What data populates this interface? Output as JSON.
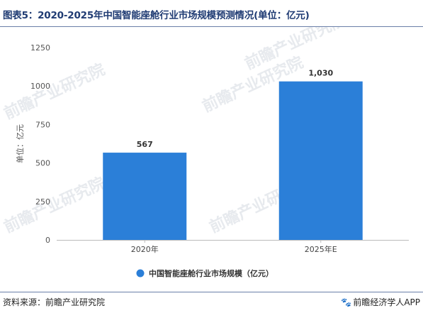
{
  "header": {
    "title": "图表5：2020-2025年中国智能座舱行业市场规模预测情况(单位：亿元)"
  },
  "footer": {
    "source": "资料来源：前瞻产业研究院",
    "brand": "前瞻经济学人APP",
    "brand_icon": "paw-icon"
  },
  "watermark": {
    "text": "前瞻产业研究院"
  },
  "colors": {
    "bar": "#2b7fd8",
    "title": "#1f3b73",
    "axis": "#bbbbbb"
  },
  "chart_data": {
    "type": "bar",
    "title": "",
    "categories": [
      "2020年",
      "2025年E"
    ],
    "series": [
      {
        "name": "中国智能座舱行业市场规模（亿元）",
        "values": [
          567,
          1030
        ]
      }
    ],
    "data_labels": [
      "567",
      "1,030"
    ],
    "ylabel": "单位：亿元",
    "xlabel": "",
    "ylim": [
      0,
      1250
    ],
    "yticks": [
      0,
      250,
      500,
      750,
      1000,
      1250
    ],
    "ytick_labels": [
      "0",
      "250",
      "500",
      "750",
      "1000",
      "1250"
    ],
    "grid": false,
    "legend_position": "bottom"
  }
}
